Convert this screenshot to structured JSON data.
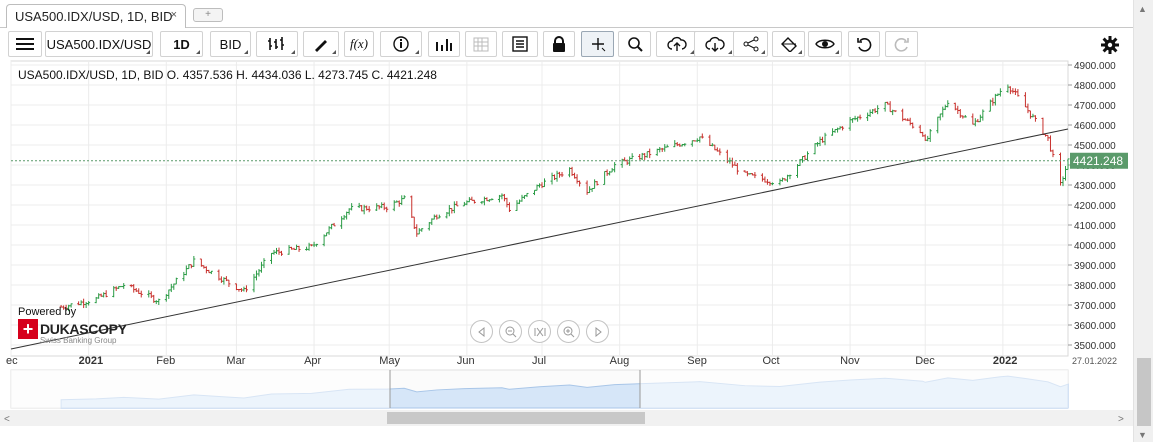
{
  "tab": {
    "title": "USA500.IDX/USD, 1D, BID",
    "close": "×",
    "add": "+"
  },
  "toolbar": {
    "menu_icon": "hamburger-icon",
    "instrument": "USA500.IDX/USD",
    "period": "1D",
    "side": "BID",
    "tools": [
      "candle-type-icon",
      "draw-pen-icon",
      "function-icon",
      "info-icon",
      "volume-bars-icon",
      "calendar-icon",
      "data-table-icon",
      "lock-icon",
      "crosshair-icon",
      "zoom-icon",
      "upload-cloud-icon",
      "download-cloud-icon",
      "share-icon",
      "theme-icon",
      "eye-icon",
      "undo-icon",
      "redo-icon",
      "settings-gear-icon"
    ]
  },
  "ohlc_text": "USA500.IDX/USD, 1D, BID   O. 4357.536 H. 4434.036 L. 4273.745 C. 4421.248",
  "last_price_label": "4421.248",
  "date_label": "27.01.2022",
  "logo": {
    "powered": "Powered by",
    "brand": "DUKASCOPY",
    "group": "Swiss Banking Group"
  },
  "colors": {
    "up": "#2a9b45",
    "down": "#c8302c",
    "last_price": "#5a9a6a",
    "trendline": "#333333",
    "nav_fill": "#d6e6f8"
  },
  "chart_data": {
    "type": "ohlc",
    "title": "USA500.IDX/USD, 1D, BID",
    "open": 4357.536,
    "high": 4434.036,
    "low": 4273.745,
    "close": 4421.248,
    "y_ticks": [
      "3500.000",
      "3600.000",
      "3700.000",
      "3800.000",
      "3900.000",
      "4000.000",
      "4100.000",
      "4200.000",
      "4300.000",
      "4400.000",
      "4500.000",
      "4600.000",
      "4700.000",
      "4800.000",
      "4900.000"
    ],
    "ylim": [
      3500,
      4900
    ],
    "x_labels": [
      "ec",
      "2021",
      "Feb",
      "Mar",
      "Apr",
      "May",
      "Jun",
      "Jul",
      "Aug",
      "Sep",
      "Oct",
      "Nov",
      "Dec",
      "2022"
    ],
    "x_start": "2020-12-01",
    "x_end": "2022-01-27",
    "grid": true,
    "series": [
      {
        "dates": [
          "2020-12-21",
          "2021-01-04",
          "2021-01-15",
          "2021-01-29",
          "2021-02-12",
          "2021-02-26",
          "2021-03-04",
          "2021-03-15",
          "2021-03-31",
          "2021-04-15",
          "2021-04-30",
          "2021-05-07",
          "2021-05-12",
          "2021-05-20",
          "2021-05-31",
          "2021-06-15",
          "2021-06-18",
          "2021-06-30",
          "2021-07-12",
          "2021-07-19",
          "2021-07-30",
          "2021-08-16",
          "2021-08-31",
          "2021-09-02",
          "2021-09-20",
          "2021-10-04",
          "2021-10-20",
          "2021-11-01",
          "2021-11-15",
          "2021-11-30",
          "2021-12-01",
          "2021-12-10",
          "2021-12-20",
          "2021-12-31",
          "2022-01-03",
          "2022-01-10",
          "2022-01-19",
          "2022-01-24",
          "2022-01-27"
        ],
        "values": [
          3690,
          3730,
          3800,
          3720,
          3920,
          3810,
          3770,
          3960,
          3990,
          4180,
          4190,
          4230,
          4060,
          4150,
          4210,
          4250,
          4180,
          4300,
          4380,
          4270,
          4400,
          4470,
          4530,
          4540,
          4350,
          4310,
          4520,
          4620,
          4700,
          4560,
          4510,
          4720,
          4600,
          4770,
          4800,
          4690,
          4530,
          4300,
          4420
        ]
      }
    ],
    "trendline": {
      "from": {
        "date": "2020-12-01",
        "value": 3480
      },
      "to": {
        "date": "2022-01-27",
        "value": 4580
      }
    },
    "last_price": 4421.248
  }
}
